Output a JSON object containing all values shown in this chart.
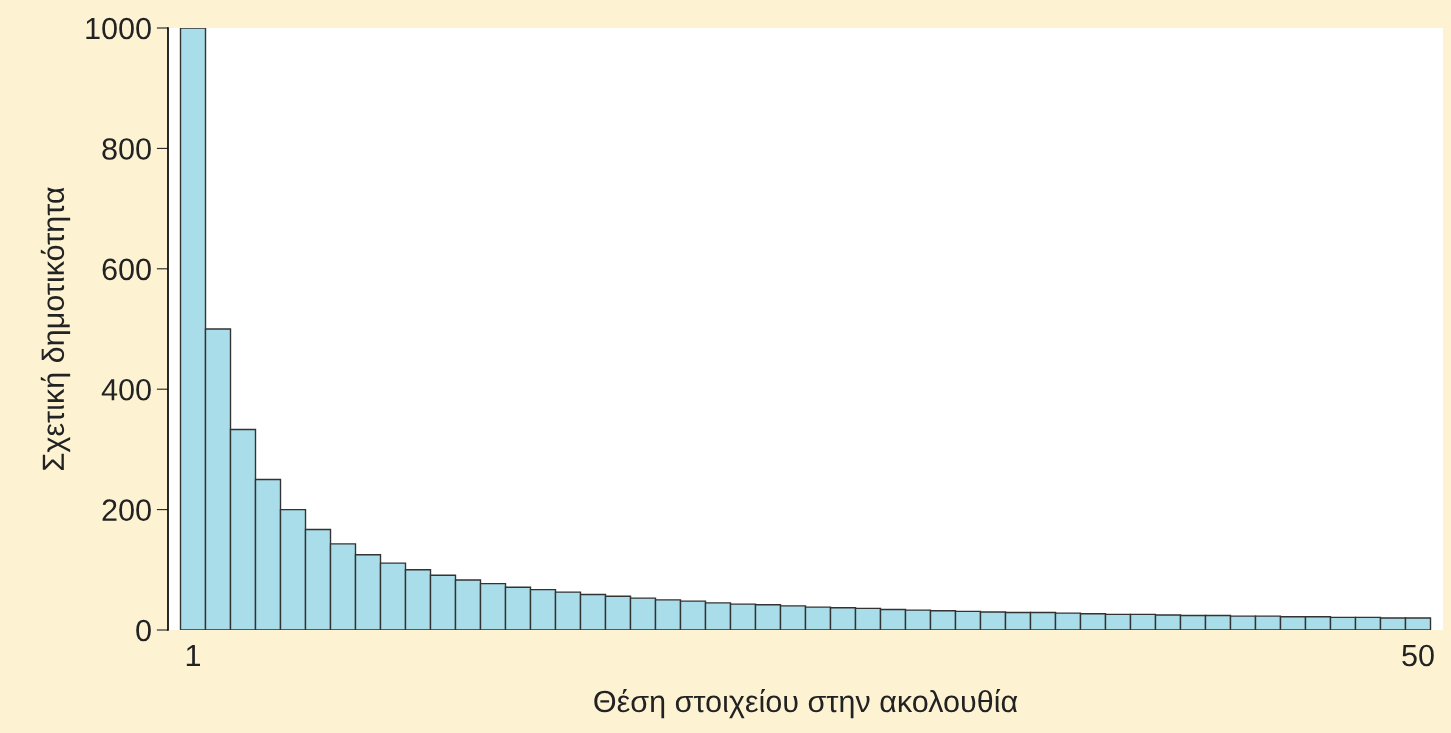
{
  "chart_data": {
    "type": "bar",
    "xlabel": "Θέση στοιχείου στην ακολουθία",
    "ylabel": "Σχετική δημοτικότητα",
    "x": [
      1,
      2,
      3,
      4,
      5,
      6,
      7,
      8,
      9,
      10,
      11,
      12,
      13,
      14,
      15,
      16,
      17,
      18,
      19,
      20,
      21,
      22,
      23,
      24,
      25,
      26,
      27,
      28,
      29,
      30,
      31,
      32,
      33,
      34,
      35,
      36,
      37,
      38,
      39,
      40,
      41,
      42,
      43,
      44,
      45,
      46,
      47,
      48,
      49,
      50
    ],
    "values": [
      1000,
      500,
      333,
      250,
      200,
      167,
      143,
      125,
      111,
      100,
      91,
      83,
      77,
      71,
      67,
      63,
      59,
      56,
      53,
      50,
      48,
      45,
      43,
      42,
      40,
      38,
      37,
      36,
      34,
      33,
      32,
      31,
      30,
      29,
      29,
      28,
      27,
      26,
      26,
      25,
      24,
      24,
      23,
      23,
      22,
      22,
      21,
      21,
      20,
      20
    ],
    "color": "#a9dde9",
    "xlim": [
      0,
      51
    ],
    "xticks": [
      1,
      50
    ],
    "ylim": [
      0,
      1000
    ],
    "yticks": [
      0,
      200,
      400,
      600,
      800,
      1000
    ],
    "grid": false,
    "legend": false
  }
}
